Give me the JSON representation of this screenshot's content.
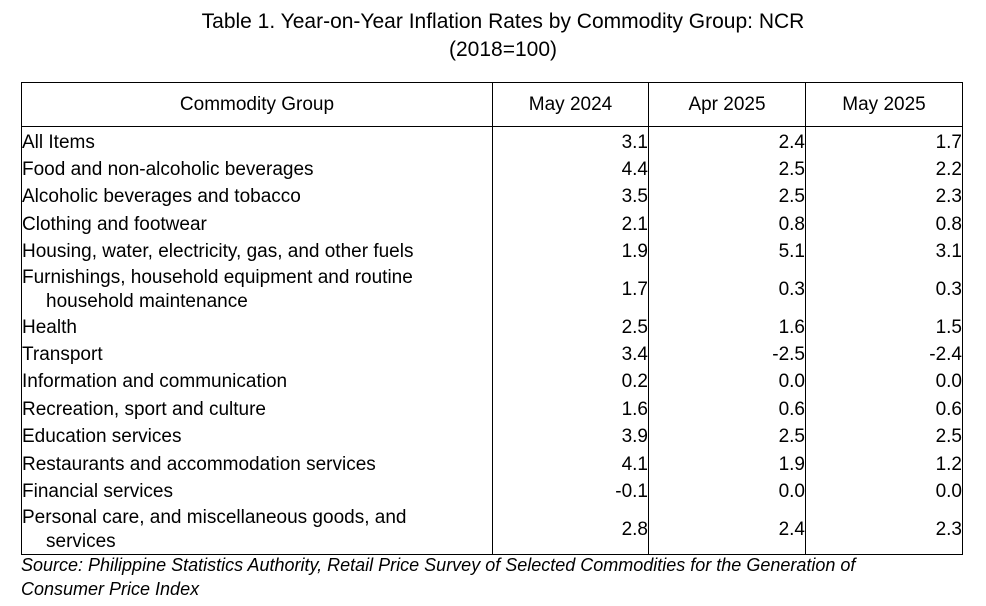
{
  "title": {
    "line1": "Table 1. Year-on-Year Inflation Rates by Commodity Group: NCR",
    "line2": "(2018=100)"
  },
  "table": {
    "headers": [
      "Commodity Group",
      "May 2024",
      "Apr 2025",
      "May 2025"
    ],
    "rows": [
      {
        "group": [
          "All Items"
        ],
        "values": [
          "3.1",
          "2.4",
          "1.7"
        ]
      },
      {
        "group": [
          "Food and non-alcoholic beverages"
        ],
        "values": [
          "4.4",
          "2.5",
          "2.2"
        ]
      },
      {
        "group": [
          "Alcoholic beverages and tobacco"
        ],
        "values": [
          "3.5",
          "2.5",
          "2.3"
        ]
      },
      {
        "group": [
          "Clothing and footwear"
        ],
        "values": [
          "2.1",
          "0.8",
          "0.8"
        ]
      },
      {
        "group": [
          "Housing, water, electricity, gas, and other fuels"
        ],
        "values": [
          "1.9",
          "5.1",
          "3.1"
        ]
      },
      {
        "group": [
          "Furnishings, household equipment and routine",
          "household maintenance"
        ],
        "values": [
          "1.7",
          "0.3",
          "0.3"
        ]
      },
      {
        "group": [
          "Health"
        ],
        "values": [
          "2.5",
          "1.6",
          "1.5"
        ]
      },
      {
        "group": [
          "Transport"
        ],
        "values": [
          "3.4",
          "-2.5",
          "-2.4"
        ]
      },
      {
        "group": [
          "Information and communication"
        ],
        "values": [
          "0.2",
          "0.0",
          "0.0"
        ]
      },
      {
        "group": [
          "Recreation, sport and culture"
        ],
        "values": [
          "1.6",
          "0.6",
          "0.6"
        ]
      },
      {
        "group": [
          "Education services"
        ],
        "values": [
          "3.9",
          "2.5",
          "2.5"
        ]
      },
      {
        "group": [
          "Restaurants and accommodation services"
        ],
        "values": [
          "4.1",
          "1.9",
          "1.2"
        ]
      },
      {
        "group": [
          "Financial services"
        ],
        "values": [
          "-0.1",
          "0.0",
          "0.0"
        ]
      },
      {
        "group": [
          "Personal care, and miscellaneous goods, and",
          "services"
        ],
        "values": [
          "2.8",
          "2.4",
          "2.3"
        ]
      }
    ]
  },
  "source": {
    "line1": "Source: Philippine Statistics Authority, Retail Price Survey of Selected Commodities for the Generation of",
    "line2": "Consumer Price Index"
  }
}
